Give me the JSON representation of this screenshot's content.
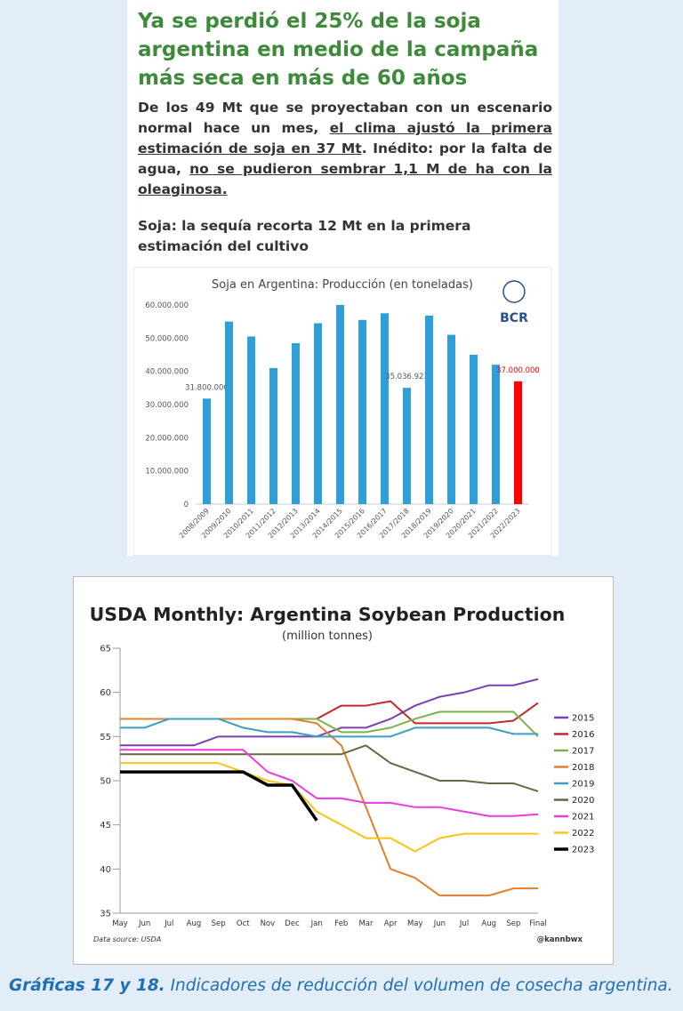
{
  "article": {
    "title": "Ya se perdió el 25% de la soja argentina en medio de la campaña más seca en más de 60 años",
    "lead": [
      {
        "text": "De los 49 Mt que se proyectaban con un escenario normal hace un mes, ",
        "underline": false
      },
      {
        "text": "el clima ajustó la primera estimación de soja en 37 Mt",
        "underline": true
      },
      {
        "text": ". Inédito: por la falta de agua, ",
        "underline": false
      },
      {
        "text": "no se pudieron sembrar 1,1 M de ha con la oleaginosa.",
        "underline": true
      }
    ],
    "subheading": "Soja: la sequía recorta 12 Mt en la primera estimación del cultivo"
  },
  "chart_data": [
    {
      "type": "bar",
      "title": "Soja en Argentina: Producción (en toneladas)",
      "logo": "BCR",
      "categories": [
        "2008/2009",
        "2009/2010",
        "2010/2011",
        "2011/2012",
        "2012/2013",
        "2013/2014",
        "2014/2015",
        "2015/2016",
        "2016/2017",
        "2017/2018",
        "2018/2019",
        "2019/2020",
        "2020/2021",
        "2021/2022",
        "2022/2023"
      ],
      "values": [
        31800000,
        55000000,
        50500000,
        41000000,
        48500000,
        54500000,
        60000000,
        55500000,
        57500000,
        35036923,
        56800000,
        51000000,
        45000000,
        42000000,
        37000000
      ],
      "value_labels": [
        "31.800.000",
        null,
        null,
        null,
        null,
        null,
        null,
        null,
        null,
        "35.036.923",
        null,
        null,
        null,
        null,
        "37.000.000"
      ],
      "colors": [
        "#2e9fd8",
        "#2e9fd8",
        "#2e9fd8",
        "#2e9fd8",
        "#2e9fd8",
        "#2e9fd8",
        "#2e9fd8",
        "#2e9fd8",
        "#2e9fd8",
        "#2e9fd8",
        "#2e9fd8",
        "#2e9fd8",
        "#2e9fd8",
        "#2e9fd8",
        "#ff0000"
      ],
      "ylim": [
        0,
        62000000
      ],
      "yticks": [
        {
          "value": 0,
          "label": "0"
        },
        {
          "value": 10000000,
          "label": "10.000.000"
        },
        {
          "value": 20000000,
          "label": "20.000.000"
        },
        {
          "value": 30000000,
          "label": "30.000.000"
        },
        {
          "value": 40000000,
          "label": "40.000.000"
        },
        {
          "value": 50000000,
          "label": "50.000.000"
        },
        {
          "value": 60000000,
          "label": "60.000.000"
        }
      ],
      "grid": false
    },
    {
      "type": "line",
      "title": "USDA Monthly: Argentina Soybean Production",
      "subtitle": "(million tonnes)",
      "source": "Data source: USDA",
      "credit": "@kannbwx",
      "categories": [
        "May",
        "Jun",
        "Jul",
        "Aug",
        "Sep",
        "Oct",
        "Nov",
        "Dec",
        "Jan",
        "Feb",
        "Mar",
        "Apr",
        "May",
        "Jun",
        "Jul",
        "Aug",
        "Sep",
        "Final"
      ],
      "ylim": [
        35,
        65
      ],
      "yticks": [
        35,
        40,
        45,
        50,
        55,
        60,
        65
      ],
      "grid": false,
      "series": [
        {
          "name": "2015",
          "color": "#7b3fb5",
          "values": [
            54,
            54,
            54,
            54,
            55,
            55,
            55,
            55,
            55,
            56,
            56,
            57,
            58.5,
            59.5,
            60,
            60.8,
            60.8,
            61.5
          ]
        },
        {
          "name": "2016",
          "color": "#c0282d",
          "values": [
            57,
            57,
            57,
            57,
            57,
            57,
            57,
            57,
            57,
            58.5,
            58.5,
            59,
            56.5,
            56.5,
            56.5,
            56.5,
            56.8,
            58.8
          ]
        },
        {
          "name": "2017",
          "color": "#7db24a",
          "values": [
            null,
            null,
            null,
            null,
            null,
            null,
            null,
            57,
            57,
            55.5,
            55.5,
            56,
            57,
            57.8,
            57.8,
            57.8,
            57.8,
            55
          ]
        },
        {
          "name": "2018",
          "color": "#e07f2a",
          "values": [
            57,
            57,
            57,
            57,
            57,
            57,
            57,
            57,
            56.5,
            54,
            47,
            40,
            39,
            37,
            37,
            37,
            37.8,
            37.8
          ]
        },
        {
          "name": "2019",
          "color": "#3a9fc0",
          "values": [
            56,
            56,
            57,
            57,
            57,
            56,
            55.5,
            55.5,
            55,
            55,
            55,
            55,
            56,
            56,
            56,
            56,
            55.3,
            55.3
          ]
        },
        {
          "name": "2020",
          "color": "#6b6540",
          "values": [
            53,
            53,
            53,
            53,
            53,
            53,
            53,
            53,
            53,
            53,
            54,
            52,
            51,
            50,
            50,
            49.7,
            49.7,
            48.8
          ]
        },
        {
          "name": "2021",
          "color": "#e83ce0",
          "values": [
            53.5,
            53.5,
            53.5,
            53.5,
            53.5,
            53.5,
            51,
            50,
            48,
            48,
            47.5,
            47.5,
            47,
            47,
            46.5,
            46,
            46,
            46.2
          ]
        },
        {
          "name": "2022",
          "color": "#f5c518",
          "values": [
            52,
            52,
            52,
            52,
            52,
            51,
            50,
            49.5,
            46.5,
            45,
            43.5,
            43.5,
            42,
            43.5,
            44,
            44,
            44,
            44
          ]
        },
        {
          "name": "2023",
          "color": "#000000",
          "bold": true,
          "values": [
            51,
            51,
            51,
            51,
            51,
            51,
            49.5,
            49.5,
            45.5,
            null,
            null,
            null,
            null,
            null,
            null,
            null,
            null,
            null
          ]
        }
      ]
    }
  ],
  "caption": {
    "label": "Gráficas 17 y 18.",
    "text": " Indicadores de reducción del volumen de cosecha argentina."
  }
}
